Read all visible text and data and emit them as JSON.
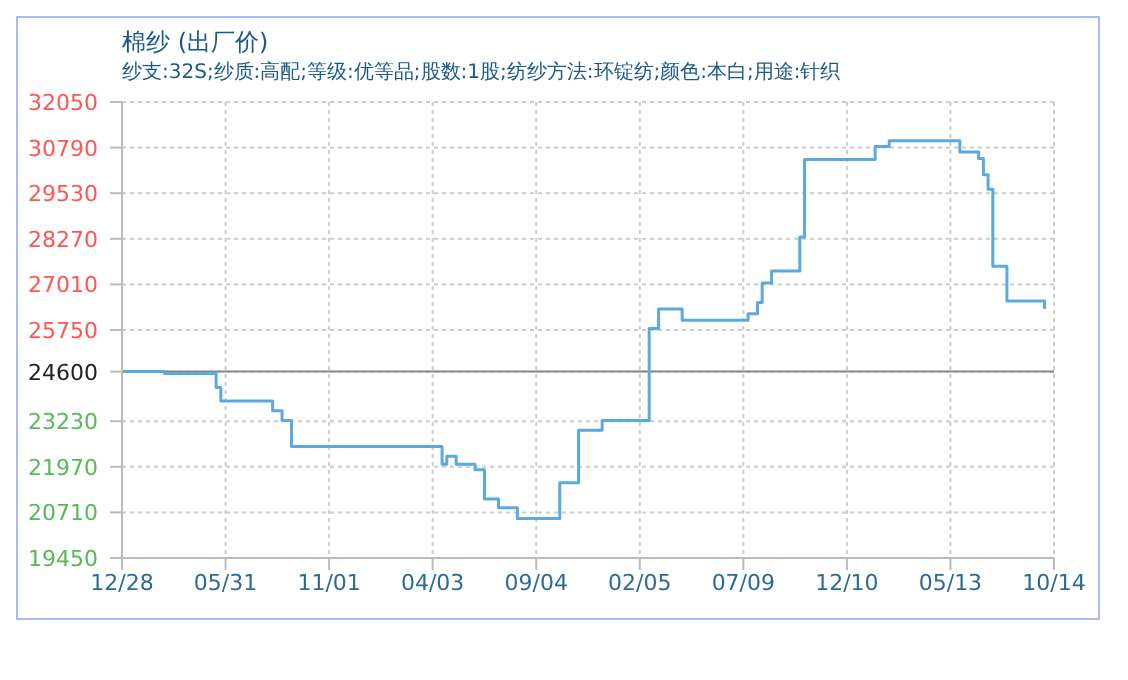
{
  "chart_data": {
    "type": "step",
    "title": "棉纱 (出厂价)",
    "subtitle": "纱支:32S;纱质:高配;等级:优等品;股数:1股;纺纱方法:环锭纺;颜色:本白;用途:针织",
    "categories": [
      "12/28",
      null,
      null,
      null,
      null,
      null,
      null,
      null,
      null,
      null,
      null,
      null,
      null,
      null,
      null,
      null,
      null,
      null,
      null,
      null,
      null,
      null,
      "05/31",
      null,
      null,
      null,
      null,
      null,
      null,
      null,
      null,
      null,
      null,
      null,
      null,
      null,
      null,
      null,
      null,
      null,
      null,
      null,
      null,
      null,
      "11/01",
      null,
      null,
      null,
      null,
      null,
      null,
      null,
      null,
      null,
      null,
      null,
      null,
      null,
      null,
      null,
      null,
      null,
      null,
      null,
      null,
      null,
      "04/03",
      null,
      null,
      null,
      null,
      null,
      null,
      null,
      null,
      null,
      null,
      null,
      null,
      null,
      null,
      null,
      null,
      null,
      null,
      null,
      null,
      null,
      "09/04",
      null,
      null,
      null,
      null,
      null,
      null,
      null,
      null,
      null,
      null,
      null,
      null,
      null,
      null,
      null,
      null,
      null,
      null,
      null,
      null,
      null,
      "02/05",
      null,
      null,
      null,
      null,
      null,
      null,
      null,
      null,
      null,
      null,
      null,
      null,
      null,
      null,
      null,
      null,
      null,
      null,
      null,
      null,
      null,
      "07/09",
      null,
      null,
      null,
      null,
      null,
      null,
      null,
      null,
      null,
      null,
      null,
      null,
      null,
      null,
      null,
      null,
      null,
      null,
      null,
      null,
      null,
      "12/10",
      null,
      null,
      null,
      null,
      null,
      null,
      null,
      null,
      null,
      null,
      null,
      null,
      null,
      null,
      null,
      null,
      null,
      null,
      null,
      null,
      null,
      "05/13",
      null,
      null,
      null,
      null,
      null,
      null,
      null,
      null,
      null,
      null,
      null,
      null,
      null,
      null,
      null,
      null,
      null,
      null,
      null,
      null,
      null,
      "10/14"
    ],
    "series": [
      {
        "color": "#5aa9e0",
        "values": [
          24600,
          24600,
          24600,
          24600,
          24600,
          24600,
          24600,
          24600,
          24600,
          24550,
          24550,
          24550,
          24550,
          24550,
          24550,
          24550,
          24550,
          24550,
          24550,
          24550,
          24160,
          23790,
          23790,
          23790,
          23790,
          23790,
          23790,
          23790,
          23790,
          23790,
          23790,
          23790,
          23520,
          23520,
          23250,
          23250,
          22530,
          22530,
          22530,
          22530,
          22530,
          22530,
          22530,
          22530,
          22530,
          22530,
          22530,
          22530,
          22530,
          22530,
          22530,
          22530,
          22530,
          22530,
          22530,
          22530,
          22530,
          22530,
          22530,
          22530,
          22530,
          22530,
          22530,
          22530,
          22530,
          22530,
          22530,
          22530,
          22040,
          22260,
          22260,
          22040,
          22040,
          22040,
          22040,
          21890,
          21890,
          21080,
          21080,
          21080,
          20840,
          20840,
          20840,
          20840,
          20540,
          20540,
          20540,
          20540,
          20540,
          20540,
          20540,
          20540,
          20540,
          21530,
          21530,
          21530,
          21530,
          22980,
          22980,
          22980,
          22980,
          22980,
          23250,
          23250,
          23250,
          23250,
          23250,
          23250,
          23250,
          23250,
          23250,
          23250,
          25790,
          25790,
          26330,
          26330,
          26330,
          26330,
          26330,
          26020,
          26020,
          26020,
          26020,
          26020,
          26020,
          26020,
          26020,
          26020,
          26020,
          26020,
          26020,
          26020,
          26020,
          26200,
          26200,
          26510,
          27050,
          27050,
          27380,
          27380,
          27380,
          27380,
          27380,
          27380,
          28320,
          30460,
          30460,
          30460,
          30460,
          30460,
          30460,
          30460,
          30460,
          30460,
          30460,
          30460,
          30460,
          30460,
          30460,
          30460,
          30820,
          30820,
          30820,
          30980,
          30980,
          30980,
          30980,
          30980,
          30980,
          30980,
          30980,
          30980,
          30980,
          30980,
          30980,
          30980,
          30980,
          30980,
          30670,
          30670,
          30670,
          30670,
          30490,
          30040,
          29640,
          27510,
          27510,
          27510,
          26550,
          26550,
          26550,
          26550,
          26550,
          26550,
          26550,
          26550,
          26330,
          null,
          null
        ]
      }
    ],
    "ylim": [
      19450,
      32050
    ],
    "yticks": [
      19450,
      20710,
      21970,
      23230,
      24600,
      25750,
      27010,
      28270,
      29530,
      30790,
      32050
    ],
    "ref_lines": [
      {
        "axis": "y",
        "value": 24600,
        "color": "#888888"
      }
    ],
    "grid": true,
    "marker": "none",
    "line_style": "solid"
  }
}
